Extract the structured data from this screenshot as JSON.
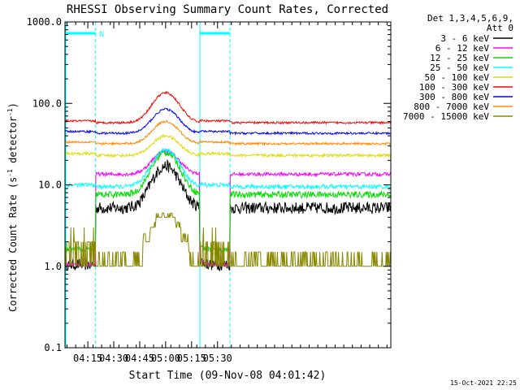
{
  "chart_data": {
    "type": "line",
    "title": "RHESSI Observing Summary Count Rates, Corrected",
    "xlabel": "Start Time (09-Nov-08 04:01:42)",
    "ylabel_main": "Corrected Count Rate (s",
    "ylabel_sup1": "-1",
    "ylabel_mid": " detector",
    "ylabel_sup2": "-1",
    "ylabel_end": ")",
    "yscale": "log",
    "ylim": [
      0.1,
      1000
    ],
    "xlim_minutes": [
      4.03,
      7.17
    ],
    "x_tick_labels": [
      "04:15",
      "04:30",
      "04:45",
      "05:00",
      "05:15",
      "05:30"
    ],
    "x_tick_minutes": [
      4.25,
      4.5,
      4.75,
      5.0,
      5.25,
      5.5
    ],
    "y_tick_labels": [
      "0.1",
      "1.0",
      "10.0",
      "100.0",
      "1000.0"
    ],
    "y_tick_values": [
      0.1,
      1,
      10,
      100,
      1000
    ],
    "legend": {
      "header1": "Det 1,3,4,5,6,9,",
      "header2": "Att 0",
      "placement": "right"
    },
    "annotation_n": "N",
    "night_intervals_minutes": [
      [
        4.03,
        4.325
      ],
      [
        5.33,
        5.62
      ]
    ],
    "series": [
      {
        "name": "3 - 6 keV",
        "color": "#000000",
        "base": 5.2,
        "peak": 17,
        "noise": 0.12
      },
      {
        "name": "6 - 12 keV",
        "color": "#ff00ff",
        "base": 13.5,
        "peak": 26,
        "noise": 0.05
      },
      {
        "name": "12 - 25 keV",
        "color": "#00dd00",
        "base": 7.6,
        "peak": 25,
        "noise": 0.09
      },
      {
        "name": "25 - 50 keV",
        "color": "#00ffff",
        "base": 9.5,
        "peak": 27,
        "noise": 0.06
      },
      {
        "name": "50 - 100 keV",
        "color": "#dddd00",
        "base": 23,
        "peak": 40,
        "noise": 0.04
      },
      {
        "name": "100 - 300 keV",
        "color": "#ff0000",
        "base": 58,
        "peak": 135,
        "noise": 0.03
      },
      {
        "name": "300 - 800 keV",
        "color": "#0000ff",
        "base": 43,
        "peak": 85,
        "noise": 0.03
      },
      {
        "name": "800 - 7000 keV",
        "color": "#ff8800",
        "base": 32,
        "peak": 60,
        "noise": 0.03
      },
      {
        "name": "7000 - 15000 keV",
        "color": "#888800",
        "base": 1.0,
        "peak": 4.5,
        "noise": 0.0
      }
    ],
    "footer_date": "15-Oct-2021 22:25"
  }
}
